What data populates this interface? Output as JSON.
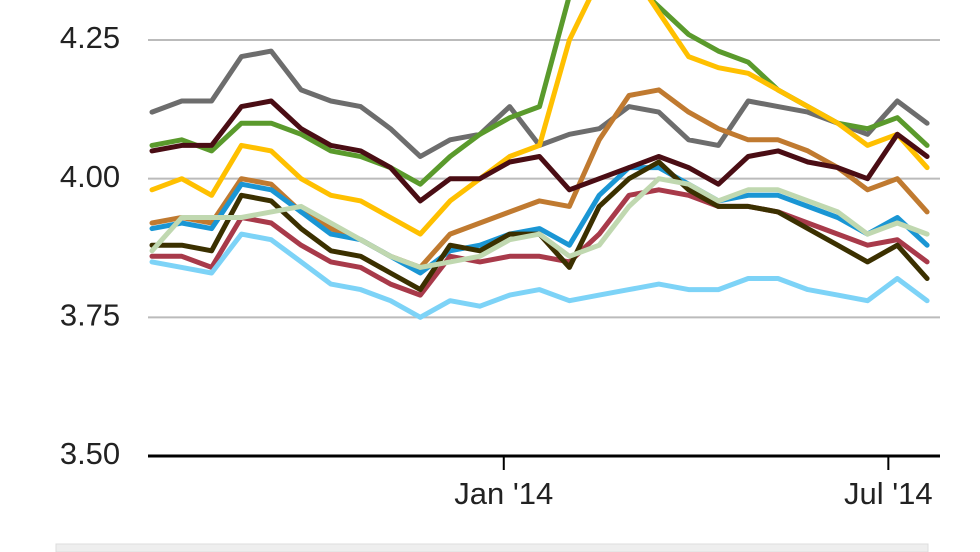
{
  "chart_data": {
    "type": "line",
    "x": [
      0,
      2,
      4,
      6,
      8,
      10,
      12,
      14,
      16,
      18,
      20,
      22,
      24,
      26,
      28,
      30,
      32,
      34,
      36,
      38,
      40,
      42,
      44,
      46,
      48,
      50,
      52
    ],
    "xlim": [
      0,
      53
    ],
    "xticks": [
      {
        "value": 23.6,
        "label": "Jan '14"
      },
      {
        "value": 49.4,
        "label": "Jul '14"
      }
    ],
    "ylim": [
      3.5,
      4.322
    ],
    "yticks": [
      {
        "value": 3.5,
        "label": "3.50"
      },
      3.75,
      {
        "value": 4,
        "label": "4.00"
      },
      4.25
    ],
    "grid": true,
    "series": [
      {
        "color": "#6d6d6d",
        "values": [
          4.12,
          4.14,
          4.14,
          4.22,
          4.23,
          4.16,
          4.14,
          4.13,
          4.09,
          4.04,
          4.07,
          4.08,
          4.13,
          4.06,
          4.08,
          4.09,
          4.13,
          4.12,
          4.07,
          4.06,
          4.14,
          4.13,
          4.12,
          4.1,
          4.08,
          4.14,
          4.1
        ]
      },
      {
        "color": "#5a9a2c",
        "values": [
          4.06,
          4.07,
          4.05,
          4.1,
          4.1,
          4.08,
          4.05,
          4.04,
          4.02,
          3.99,
          4.04,
          4.08,
          4.11,
          4.13,
          4.33,
          4.36,
          4.36,
          4.31,
          4.26,
          4.23,
          4.21,
          4.16,
          4.13,
          4.1,
          4.09,
          4.11,
          4.06
        ]
      },
      {
        "color": "#ffc000",
        "values": [
          3.98,
          4.0,
          3.97,
          4.06,
          4.05,
          4.0,
          3.97,
          3.96,
          3.93,
          3.9,
          3.96,
          4.0,
          4.04,
          4.06,
          4.25,
          4.36,
          4.38,
          4.3,
          4.22,
          4.2,
          4.19,
          4.16,
          4.13,
          4.1,
          4.06,
          4.08,
          4.02
        ]
      },
      {
        "color": "#c07a30",
        "values": [
          3.92,
          3.93,
          3.92,
          4.0,
          3.99,
          3.94,
          3.91,
          3.89,
          3.86,
          3.84,
          3.9,
          3.92,
          3.94,
          3.96,
          3.95,
          4.07,
          4.15,
          4.16,
          4.12,
          4.09,
          4.07,
          4.07,
          4.05,
          4.02,
          3.98,
          4.0,
          3.94
        ]
      },
      {
        "color": "#1a96d4",
        "values": [
          3.91,
          3.92,
          3.91,
          3.99,
          3.98,
          3.94,
          3.9,
          3.89,
          3.86,
          3.83,
          3.87,
          3.88,
          3.9,
          3.91,
          3.88,
          3.97,
          4.02,
          4.02,
          3.99,
          3.96,
          3.97,
          3.97,
          3.95,
          3.93,
          3.9,
          3.93,
          3.88
        ]
      },
      {
        "color": "#a83a4a",
        "values": [
          3.86,
          3.86,
          3.84,
          3.93,
          3.92,
          3.88,
          3.85,
          3.84,
          3.81,
          3.79,
          3.86,
          3.85,
          3.86,
          3.86,
          3.85,
          3.9,
          3.97,
          3.98,
          3.97,
          3.95,
          3.95,
          3.94,
          3.92,
          3.9,
          3.88,
          3.89,
          3.85
        ]
      },
      {
        "color": "#3b3000",
        "values": [
          3.88,
          3.88,
          3.87,
          3.97,
          3.96,
          3.91,
          3.87,
          3.86,
          3.83,
          3.8,
          3.88,
          3.87,
          3.9,
          3.9,
          3.84,
          3.95,
          4.0,
          4.03,
          3.98,
          3.95,
          3.95,
          3.94,
          3.91,
          3.88,
          3.85,
          3.88,
          3.82
        ]
      },
      {
        "color": "#c0d8b0",
        "values": [
          3.87,
          3.93,
          3.93,
          3.93,
          3.94,
          3.95,
          3.92,
          3.89,
          3.86,
          3.84,
          3.85,
          3.86,
          3.89,
          3.9,
          3.86,
          3.88,
          3.95,
          4.0,
          3.99,
          3.96,
          3.98,
          3.98,
          3.96,
          3.94,
          3.9,
          3.92,
          3.9
        ]
      },
      {
        "color": "#4a0d14",
        "values": [
          4.05,
          4.06,
          4.06,
          4.13,
          4.14,
          4.09,
          4.06,
          4.05,
          4.02,
          3.96,
          4.0,
          4.0,
          4.03,
          4.04,
          3.98,
          4.0,
          4.02,
          4.04,
          4.02,
          3.99,
          4.04,
          4.05,
          4.03,
          4.02,
          4.0,
          4.08,
          4.04
        ]
      },
      {
        "color": "#7dd3f7",
        "values": [
          3.85,
          3.84,
          3.83,
          3.9,
          3.89,
          3.85,
          3.81,
          3.8,
          3.78,
          3.75,
          3.78,
          3.77,
          3.79,
          3.8,
          3.78,
          3.79,
          3.8,
          3.81,
          3.8,
          3.8,
          3.82,
          3.82,
          3.8,
          3.79,
          3.78,
          3.82,
          3.78
        ]
      }
    ]
  }
}
